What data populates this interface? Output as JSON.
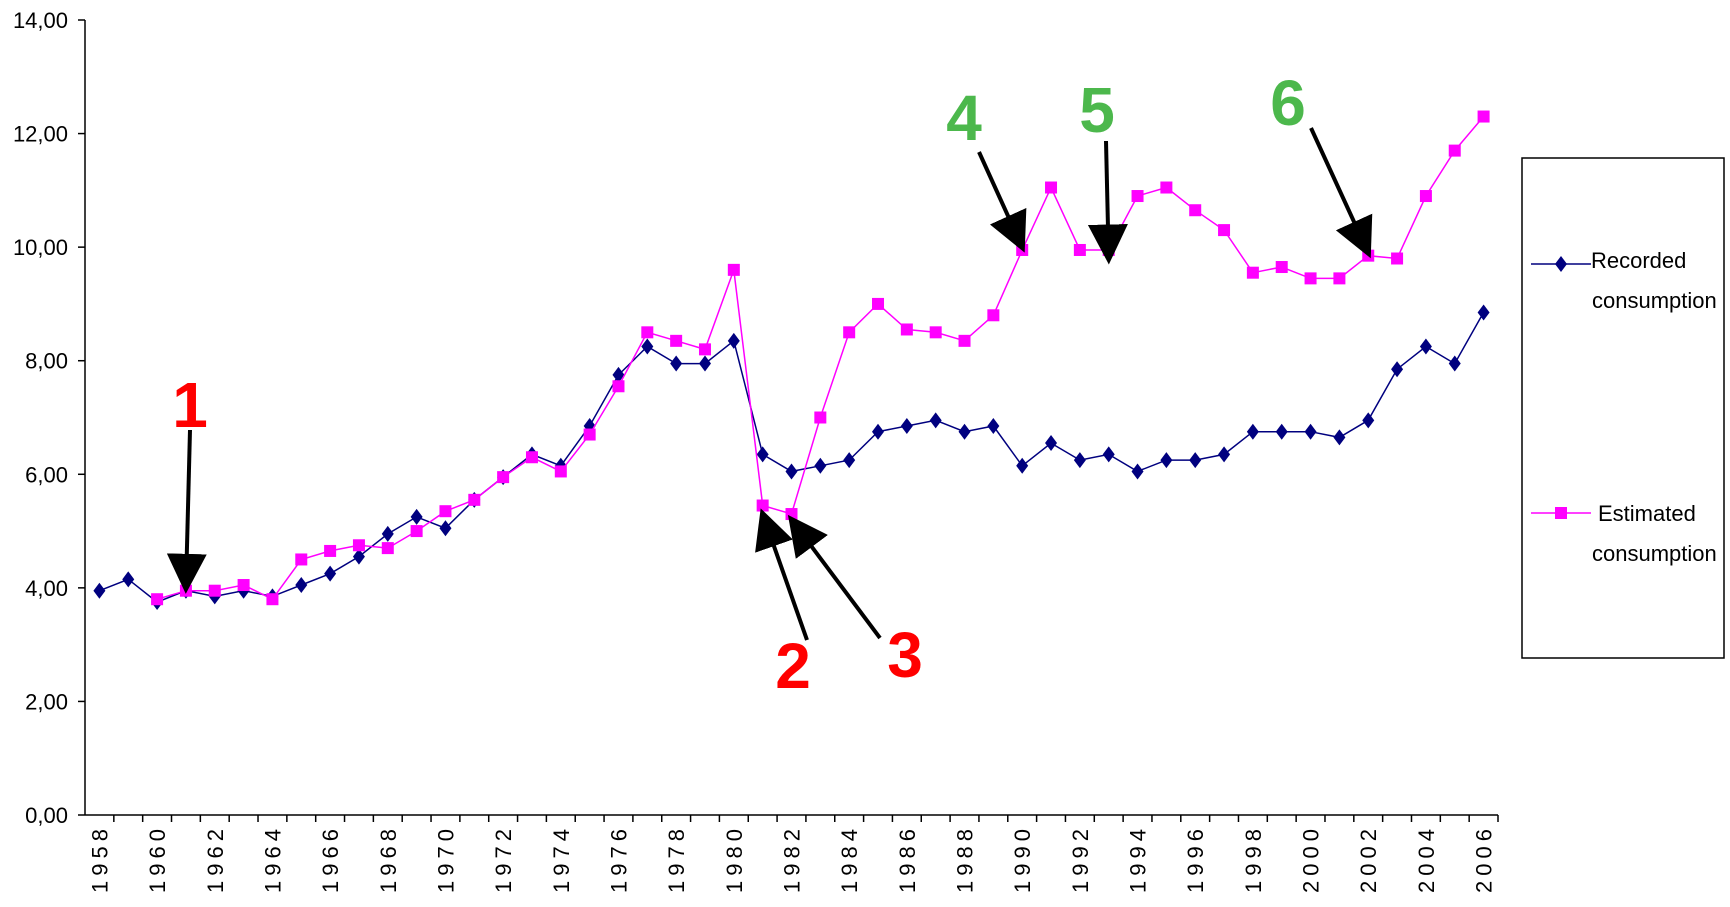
{
  "chart_data": {
    "type": "line",
    "title": "",
    "xlabel": "",
    "ylabel": "",
    "ylim": [
      0,
      14
    ],
    "yticks": [
      "0,00",
      "2,00",
      "4,00",
      "6,00",
      "8,00",
      "10,00",
      "12,00",
      "14,00"
    ],
    "xticks": [
      "1958",
      "1960",
      "1962",
      "1964",
      "1966",
      "1968",
      "1970",
      "1972",
      "1974",
      "1976",
      "1978",
      "1980",
      "1982",
      "1984",
      "1986",
      "1988",
      "1990",
      "1992",
      "1994",
      "1996",
      "1998",
      "2000",
      "2002",
      "2004",
      "2006"
    ],
    "x": [
      1958,
      1959,
      1960,
      1961,
      1962,
      1963,
      1964,
      1965,
      1966,
      1967,
      1968,
      1969,
      1970,
      1971,
      1972,
      1973,
      1974,
      1975,
      1976,
      1977,
      1978,
      1979,
      1980,
      1981,
      1982,
      1983,
      1984,
      1985,
      1986,
      1987,
      1988,
      1989,
      1990,
      1991,
      1992,
      1993,
      1994,
      1995,
      1996,
      1997,
      1998,
      1999,
      2000,
      2001,
      2002,
      2003,
      2004,
      2005,
      2006
    ],
    "grid": false,
    "legend_position": "right",
    "series": [
      {
        "name": "Recorded consumption",
        "color": "#00007f",
        "marker": "diamond",
        "values": [
          3.95,
          4.15,
          3.75,
          3.95,
          3.85,
          3.95,
          3.85,
          4.05,
          4.25,
          4.55,
          4.95,
          5.25,
          5.05,
          5.55,
          5.95,
          6.35,
          6.15,
          6.85,
          7.75,
          8.25,
          7.95,
          7.95,
          8.35,
          6.35,
          6.05,
          6.15,
          6.25,
          6.75,
          6.85,
          6.95,
          6.75,
          6.85,
          6.15,
          6.55,
          6.25,
          6.35,
          6.05,
          6.25,
          6.25,
          6.35,
          6.75,
          6.75,
          6.75,
          6.65,
          6.95,
          7.85,
          8.25,
          7.95,
          8.85
        ]
      },
      {
        "name": "Estimated consumption",
        "color": "#ff00ff",
        "marker": "square",
        "values": [
          null,
          null,
          3.8,
          3.95,
          3.95,
          4.05,
          3.8,
          4.5,
          4.65,
          4.75,
          4.7,
          5.0,
          5.35,
          5.55,
          5.95,
          6.3,
          6.05,
          6.7,
          7.55,
          8.5,
          8.35,
          8.2,
          9.6,
          5.45,
          5.3,
          7.0,
          8.5,
          9.0,
          8.55,
          8.5,
          8.35,
          8.8,
          9.95,
          11.05,
          9.95,
          9.95,
          10.9,
          11.05,
          10.65,
          10.3,
          9.55,
          9.65,
          9.45,
          9.45,
          9.85,
          9.8,
          10.9,
          11.7,
          12.3
        ]
      }
    ],
    "legend": {
      "recorded": {
        "line1": "Recorded",
        "line2": "consumption"
      },
      "estimated": {
        "line1": "Estimated",
        "line2": "consumption"
      }
    },
    "annotations": [
      {
        "label": "1",
        "color": "#ff0000",
        "points_to_year": 1961,
        "points_to_value": 4.0
      },
      {
        "label": "2",
        "color": "#ff0000",
        "points_to_year": 1981,
        "points_to_value": 5.3
      },
      {
        "label": "3",
        "color": "#ff0000",
        "points_to_year": 1982,
        "points_to_value": 5.2
      },
      {
        "label": "4",
        "color": "#4cb84c",
        "points_to_year": 1990,
        "points_to_value": 10.0
      },
      {
        "label": "5",
        "color": "#4cb84c",
        "points_to_year": 1993,
        "points_to_value": 9.8
      },
      {
        "label": "6",
        "color": "#4cb84c",
        "points_to_year": 2002,
        "points_to_value": 9.9
      }
    ]
  }
}
